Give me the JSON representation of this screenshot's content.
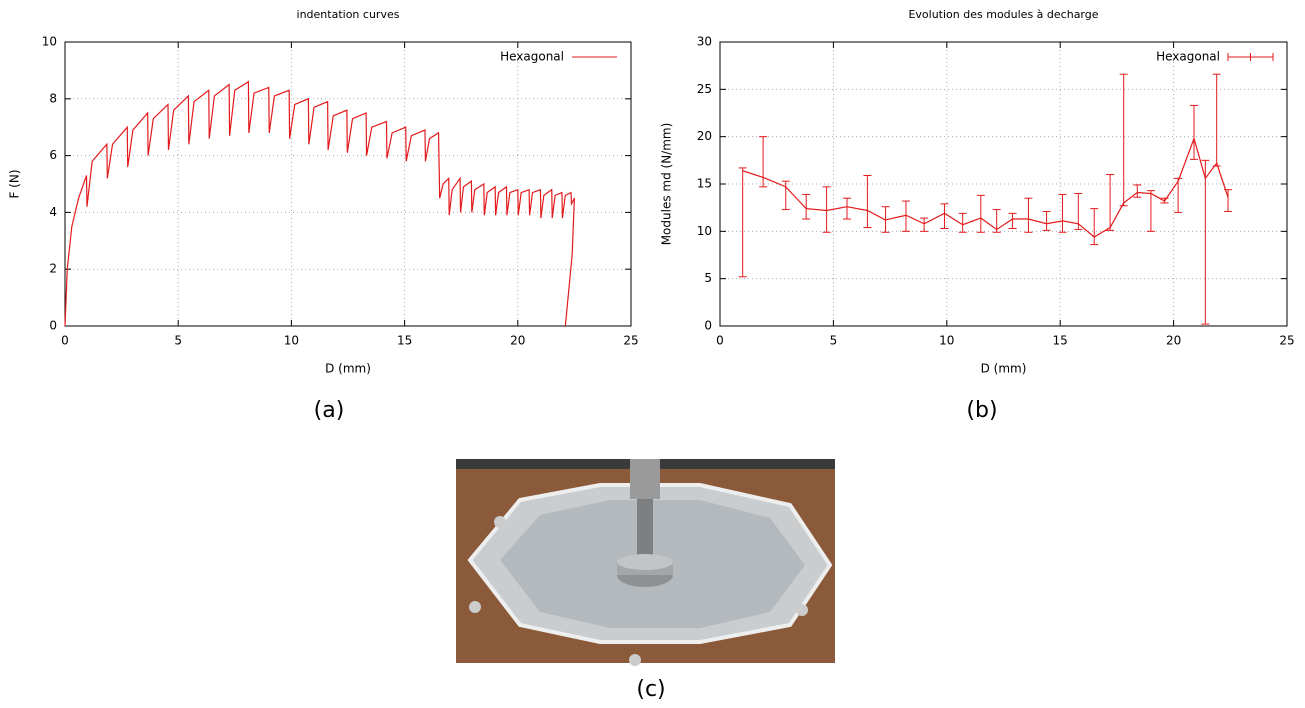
{
  "chart_data": [
    {
      "type": "line",
      "title": "indentation curves",
      "xlabel": "D (mm)",
      "ylabel": "F (N)",
      "xlim": [
        0,
        25
      ],
      "xticks": [
        0,
        5,
        10,
        15,
        20,
        25
      ],
      "ylim": [
        0,
        10
      ],
      "yticks": [
        0,
        2,
        4,
        6,
        8,
        10
      ],
      "grid": true,
      "legend": "upper right",
      "x": [
        0,
        0.1,
        0.3,
        0.6,
        0.95,
        0.97,
        1.2,
        1.85,
        1.87,
        2.1,
        2.75,
        2.77,
        3.0,
        3.65,
        3.67,
        3.9,
        4.55,
        4.57,
        4.8,
        5.45,
        5.47,
        5.7,
        6.35,
        6.37,
        6.6,
        7.25,
        7.27,
        7.5,
        8.1,
        8.12,
        8.35,
        9.0,
        9.02,
        9.25,
        9.9,
        9.92,
        10.15,
        10.75,
        10.77,
        11.0,
        11.6,
        11.62,
        11.85,
        12.45,
        12.47,
        12.7,
        13.3,
        13.32,
        13.55,
        14.2,
        14.22,
        14.45,
        15.05,
        15.07,
        15.3,
        15.9,
        15.92,
        16.1,
        16.5,
        16.55,
        16.7,
        16.95,
        16.97,
        17.1,
        17.45,
        17.47,
        17.6,
        17.95,
        17.97,
        18.1,
        18.5,
        18.52,
        18.65,
        19.0,
        19.02,
        19.15,
        19.5,
        19.52,
        19.65,
        20.0,
        20.02,
        20.15,
        20.5,
        20.52,
        20.65,
        21.0,
        21.02,
        21.15,
        21.5,
        21.52,
        21.65,
        21.95,
        21.97,
        22.1,
        22.35,
        22.37,
        22.5,
        22.4,
        22.1
      ],
      "series": [
        {
          "name": "Hexagonal",
          "color": "#e31a1c",
          "values": [
            0,
            2.0,
            3.5,
            4.5,
            5.3,
            4.2,
            5.8,
            6.4,
            5.2,
            6.4,
            7.0,
            5.6,
            6.9,
            7.5,
            6.0,
            7.3,
            7.8,
            6.2,
            7.6,
            8.1,
            6.4,
            7.9,
            8.3,
            6.6,
            8.1,
            8.5,
            6.7,
            8.3,
            8.6,
            6.8,
            8.2,
            8.4,
            6.8,
            8.1,
            8.3,
            6.6,
            7.8,
            8.0,
            6.4,
            7.7,
            7.9,
            6.2,
            7.4,
            7.6,
            6.1,
            7.3,
            7.5,
            6.0,
            7.0,
            7.2,
            5.9,
            6.8,
            7.0,
            5.8,
            6.7,
            6.9,
            5.8,
            6.6,
            6.8,
            4.5,
            5.0,
            5.2,
            3.9,
            4.8,
            5.2,
            4.0,
            4.9,
            5.1,
            4.0,
            4.8,
            5.0,
            3.9,
            4.7,
            4.9,
            3.9,
            4.7,
            4.9,
            3.9,
            4.7,
            4.8,
            3.9,
            4.7,
            4.8,
            3.9,
            4.7,
            4.8,
            3.8,
            4.6,
            4.8,
            3.8,
            4.6,
            4.7,
            3.8,
            4.6,
            4.7,
            4.3,
            4.5,
            2.5,
            0
          ]
        }
      ]
    },
    {
      "type": "errorbar",
      "title": "Evolution des modules à decharge",
      "xlabel": "D (mm)",
      "ylabel": "Modules md (N/mm)",
      "xlim": [
        0,
        25
      ],
      "xticks": [
        0,
        5,
        10,
        15,
        20,
        25
      ],
      "ylim": [
        0,
        30
      ],
      "yticks": [
        0,
        5,
        10,
        15,
        20,
        25,
        30
      ],
      "grid": true,
      "legend": "upper right",
      "x": [
        1.0,
        1.9,
        2.9,
        3.8,
        4.7,
        5.6,
        6.5,
        7.3,
        8.2,
        9.0,
        9.9,
        10.7,
        11.5,
        12.2,
        12.9,
        13.6,
        14.4,
        15.1,
        15.8,
        16.5,
        17.2,
        17.8,
        18.4,
        19.0,
        19.6,
        20.2,
        20.9,
        21.4,
        21.9,
        22.4
      ],
      "series": [
        {
          "name": "Hexagonal",
          "color": "#e31a1c",
          "values": [
            16.4,
            15.7,
            14.7,
            12.4,
            12.2,
            12.6,
            12.2,
            11.2,
            11.7,
            10.8,
            11.9,
            10.7,
            11.4,
            10.2,
            11.3,
            11.3,
            10.8,
            11.1,
            10.8,
            9.4,
            10.4,
            13.0,
            14.1,
            14.0,
            13.2,
            15.3,
            19.8,
            15.6,
            17.2,
            13.6
          ],
          "ylow": [
            5.2,
            14.7,
            12.3,
            11.3,
            9.9,
            11.3,
            10.4,
            9.9,
            10.0,
            10.0,
            10.3,
            9.9,
            9.9,
            9.9,
            10.3,
            9.9,
            10.1,
            9.9,
            10.2,
            8.6,
            10.1,
            12.7,
            13.6,
            10.0,
            13.0,
            12.0,
            17.6,
            0.2,
            16.9,
            12.1
          ],
          "yhigh": [
            16.7,
            20.0,
            15.3,
            13.9,
            14.7,
            13.5,
            15.9,
            12.6,
            13.2,
            11.4,
            12.9,
            11.9,
            13.8,
            12.3,
            11.9,
            13.5,
            12.1,
            13.9,
            14.0,
            12.4,
            16.0,
            26.6,
            14.9,
            14.3,
            13.5,
            15.6,
            23.3,
            17.5,
            26.6,
            14.4
          ]
        }
      ]
    }
  ],
  "panel_labels": [
    "(a)",
    "(b)",
    "(c)"
  ]
}
